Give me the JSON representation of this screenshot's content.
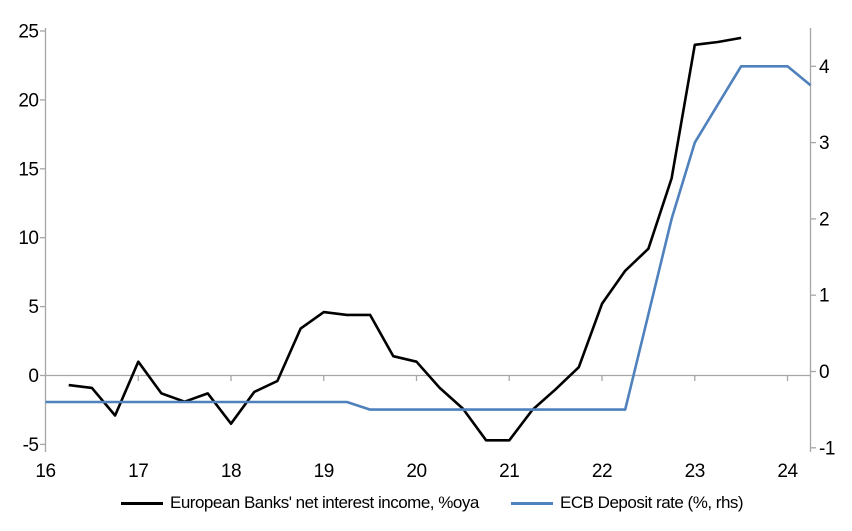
{
  "chart_data": {
    "type": "line",
    "title": "",
    "x_axis": {
      "tick_labels": [
        "16",
        "17",
        "18",
        "19",
        "20",
        "21",
        "22",
        "23",
        "24"
      ],
      "tick_values": [
        16,
        17,
        18,
        19,
        20,
        21,
        22,
        23,
        24
      ],
      "range": [
        16,
        24.25
      ],
      "zero_line_ticks": true
    },
    "left_y_axis": {
      "tick_values": [
        -5,
        0,
        5,
        10,
        15,
        20,
        25
      ],
      "tick_labels": [
        "-5",
        "0",
        "5",
        "10",
        "15",
        "20",
        "25"
      ],
      "range": [
        -5.6,
        25.2
      ]
    },
    "right_y_axis": {
      "tick_values": [
        -1,
        0,
        1,
        2,
        3,
        4
      ],
      "tick_labels": [
        "-1",
        "0",
        "1",
        "2",
        "3",
        "4"
      ],
      "range": [
        -1.05,
        4.5
      ]
    },
    "grid": "zero-line-only",
    "legend_position": "bottom",
    "series": [
      {
        "name": "European Banks' net interest income, %oya",
        "axis": "left",
        "color": "#000000",
        "x": [
          16.25,
          16.5,
          16.75,
          17.0,
          17.25,
          17.5,
          17.75,
          18.0,
          18.25,
          18.5,
          18.75,
          19.0,
          19.25,
          19.5,
          19.75,
          20.0,
          20.25,
          20.5,
          20.75,
          21.0,
          21.25,
          21.5,
          21.75,
          22.0,
          22.25,
          22.5,
          22.75,
          23.0,
          23.25,
          23.5
        ],
        "values": [
          -0.7,
          -0.9,
          -2.9,
          1.0,
          -1.3,
          -1.9,
          -1.3,
          -3.5,
          -1.2,
          -0.4,
          3.4,
          4.6,
          4.4,
          4.4,
          1.4,
          1.0,
          -0.9,
          -2.4,
          -4.7,
          -4.7,
          -2.5,
          -1.0,
          0.6,
          5.2,
          7.6,
          9.2,
          14.3,
          24.0,
          24.2,
          24.5
        ]
      },
      {
        "name": "ECB Deposit rate (%, rhs)",
        "axis": "right",
        "color": "#4F81BD",
        "x": [
          16.0,
          16.25,
          16.5,
          16.75,
          17.0,
          17.25,
          17.5,
          17.75,
          18.0,
          18.25,
          18.5,
          18.75,
          19.0,
          19.25,
          19.5,
          19.75,
          20.0,
          20.25,
          20.5,
          20.75,
          21.0,
          21.25,
          21.5,
          21.75,
          22.0,
          22.25,
          22.5,
          22.75,
          23.0,
          23.25,
          23.5,
          23.75,
          24.0,
          24.25
        ],
        "values": [
          -0.4,
          -0.4,
          -0.4,
          -0.4,
          -0.4,
          -0.4,
          -0.4,
          -0.4,
          -0.4,
          -0.4,
          -0.4,
          -0.4,
          -0.4,
          -0.4,
          -0.5,
          -0.5,
          -0.5,
          -0.5,
          -0.5,
          -0.5,
          -0.5,
          -0.5,
          -0.5,
          -0.5,
          -0.5,
          -0.5,
          0.75,
          2.0,
          3.0,
          3.5,
          4.0,
          4.0,
          4.0,
          3.75
        ]
      }
    ]
  },
  "legend": {
    "items": [
      {
        "label": "European Banks' net interest income, %oya",
        "color": "#000000"
      },
      {
        "label": "ECB Deposit rate (%, rhs)",
        "color": "#4F81BD"
      }
    ]
  },
  "colors": {
    "axis": "#A6A6A6",
    "background": "#FFFFFF",
    "nii_line": "#000000",
    "ecb_line": "#4F81BD"
  }
}
